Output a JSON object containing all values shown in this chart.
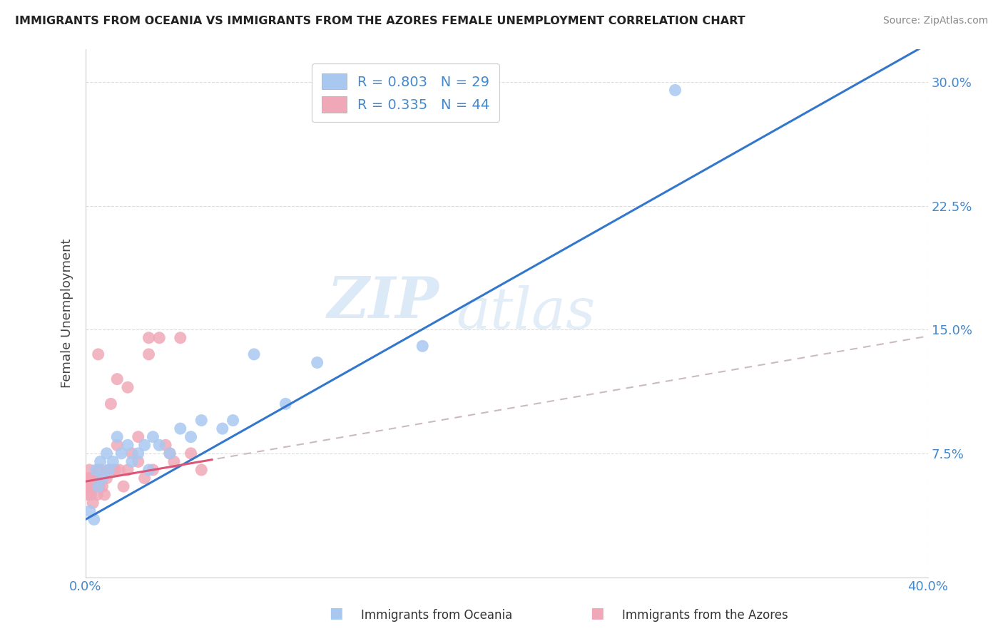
{
  "title": "IMMIGRANTS FROM OCEANIA VS IMMIGRANTS FROM THE AZORES FEMALE UNEMPLOYMENT CORRELATION CHART",
  "source": "Source: ZipAtlas.com",
  "ylabel": "Female Unemployment",
  "oceania_R": 0.803,
  "oceania_N": 29,
  "azores_R": 0.335,
  "azores_N": 44,
  "oceania_color": "#a8c8f0",
  "azores_color": "#f0a8b8",
  "oceania_line_color": "#3377cc",
  "azores_line_color": "#dd5577",
  "azores_dash_color": "#ccaaaa",
  "legend_label1": "Immigrants from Oceania",
  "legend_label2": "Immigrants from the Azores",
  "watermark_zip": "ZIP",
  "watermark_atlas": "atlas",
  "background_color": "#ffffff",
  "grid_color": "#dddddd",
  "tick_color": "#4488cc",
  "x_min": 0.0,
  "x_max": 40.0,
  "y_min": 0.0,
  "y_max": 32.0,
  "oceania_points_x": [
    0.2,
    0.4,
    0.5,
    0.6,
    0.7,
    0.8,
    1.0,
    1.1,
    1.3,
    1.5,
    1.7,
    2.0,
    2.2,
    2.5,
    2.8,
    3.0,
    3.2,
    3.5,
    4.0,
    4.5,
    5.0,
    5.5,
    6.5,
    7.0,
    8.0,
    9.5,
    11.0,
    16.0,
    28.0
  ],
  "oceania_points_y": [
    4.0,
    3.5,
    6.5,
    5.5,
    7.0,
    6.0,
    7.5,
    6.5,
    7.0,
    8.5,
    7.5,
    8.0,
    7.0,
    7.5,
    8.0,
    6.5,
    8.5,
    8.0,
    7.5,
    9.0,
    8.5,
    9.5,
    9.0,
    9.5,
    13.5,
    10.5,
    13.0,
    14.0,
    29.5
  ],
  "azores_points_x": [
    0.05,
    0.1,
    0.12,
    0.15,
    0.18,
    0.2,
    0.25,
    0.3,
    0.35,
    0.4,
    0.45,
    0.5,
    0.55,
    0.6,
    0.65,
    0.7,
    0.8,
    0.9,
    1.0,
    1.1,
    1.2,
    1.3,
    1.4,
    1.5,
    1.6,
    1.8,
    2.0,
    2.2,
    2.5,
    2.8,
    3.0,
    3.2,
    3.5,
    3.8,
    4.0,
    4.2,
    4.5,
    5.0,
    5.5,
    2.0,
    1.5,
    3.0,
    2.5,
    0.6
  ],
  "azores_points_y": [
    5.0,
    5.5,
    6.0,
    5.5,
    6.5,
    6.0,
    5.0,
    5.5,
    4.5,
    6.0,
    5.5,
    6.0,
    5.0,
    6.5,
    5.5,
    6.5,
    5.5,
    5.0,
    6.0,
    6.5,
    10.5,
    6.5,
    6.5,
    12.0,
    6.5,
    5.5,
    6.5,
    7.5,
    7.0,
    6.0,
    14.5,
    6.5,
    14.5,
    8.0,
    7.5,
    7.0,
    14.5,
    7.5,
    6.5,
    11.5,
    8.0,
    13.5,
    8.5,
    13.5
  ],
  "oceania_line_slope": 0.72,
  "oceania_line_intercept": 3.5,
  "azores_line_slope": 0.22,
  "azores_line_intercept": 5.8
}
